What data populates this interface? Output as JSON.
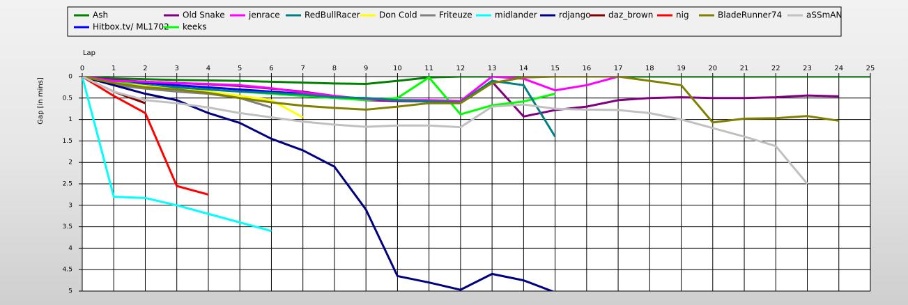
{
  "chart_data": {
    "type": "line",
    "x_label": "Lap",
    "y_label": "Gap [in mins]",
    "x": [
      0,
      1,
      2,
      3,
      4,
      5,
      6,
      7,
      8,
      9,
      10,
      11,
      12,
      13,
      14,
      15,
      16,
      17,
      18,
      19,
      20,
      21,
      22,
      23,
      24,
      25
    ],
    "xlim": [
      0,
      25
    ],
    "xticks": [
      0,
      1,
      2,
      3,
      4,
      5,
      6,
      7,
      8,
      9,
      10,
      11,
      12,
      13,
      14,
      15,
      16,
      17,
      18,
      19,
      20,
      21,
      22,
      23,
      24,
      25
    ],
    "ylim": [
      0,
      5
    ],
    "yticks": [
      0,
      0.5,
      1,
      1.5,
      2,
      2.5,
      3,
      3.5,
      4,
      4.5,
      5
    ],
    "y_inverted": true,
    "grid": true,
    "legend": "top",
    "series": [
      {
        "name": "Ash",
        "color": "#008000",
        "values": [
          0,
          0.04,
          0.06,
          0.08,
          0.09,
          0.1,
          0.12,
          0.14,
          0.16,
          0.17,
          0.1,
          0.02,
          0,
          0,
          0,
          0,
          0,
          0,
          0,
          0,
          0,
          0,
          0,
          0,
          0,
          0
        ]
      },
      {
        "name": "Hitbox.tv/ ML1702",
        "color": "#0000ff",
        "values": [
          0,
          0.1,
          0.15,
          0.2,
          0.25,
          0.3,
          0.35,
          0.4,
          0.45,
          0.55,
          0.55,
          0.55,
          0.6,
          null,
          null,
          null,
          null,
          null,
          null,
          null,
          null,
          null,
          null,
          null,
          null,
          null
        ]
      },
      {
        "name": "Old Snake",
        "color": "#800080",
        "values": [
          0,
          0.08,
          0.12,
          0.15,
          0.18,
          0.22,
          0.28,
          0.35,
          0.45,
          0.55,
          0.57,
          0.58,
          0.6,
          0.12,
          0.93,
          0.78,
          0.7,
          0.55,
          0.5,
          0.48,
          0.5,
          0.5,
          0.48,
          0.44,
          0.46,
          null
        ]
      },
      {
        "name": "keeks",
        "color": "#00ff00",
        "values": [
          0,
          0.12,
          0.2,
          0.25,
          0.3,
          0.35,
          0.4,
          0.45,
          0.5,
          0.55,
          0.5,
          0.02,
          0.88,
          0.67,
          0.58,
          0.4,
          null,
          null,
          null,
          null,
          null,
          null,
          null,
          null,
          null,
          null
        ]
      },
      {
        "name": "jenrace",
        "color": "#ff00ff",
        "values": [
          0,
          0.1,
          0.12,
          0.15,
          0.17,
          0.2,
          0.27,
          0.37,
          0.45,
          0.52,
          0.55,
          0.55,
          0.57,
          0,
          0.05,
          0.32,
          0.2,
          0,
          null,
          null,
          null,
          null,
          null,
          null,
          null,
          null
        ]
      },
      {
        "name": "RedBullRacer",
        "color": "#008080",
        "values": [
          0,
          0.15,
          0.2,
          0.25,
          0.3,
          0.35,
          0.38,
          0.42,
          0.48,
          0.5,
          0.55,
          0.58,
          0.6,
          0.1,
          0.2,
          1.4,
          null,
          null,
          null,
          null,
          null,
          null,
          null,
          null,
          null,
          null
        ]
      },
      {
        "name": "Don Cold",
        "color": "#ffff00",
        "values": [
          0,
          0.15,
          0.22,
          0.3,
          0.35,
          0.45,
          0.55,
          0.95,
          null,
          null,
          null,
          null,
          null,
          null,
          null,
          null,
          null,
          null,
          null,
          null,
          null,
          null,
          null,
          null,
          null,
          null
        ]
      },
      {
        "name": "Friteuze",
        "color": "#808080",
        "values": [
          0,
          0.2,
          0.28,
          0.35,
          0.4,
          0.5,
          0.72,
          null,
          null,
          null,
          null,
          null,
          null,
          null,
          null,
          null,
          null,
          null,
          null,
          null,
          null,
          null,
          null,
          null,
          null,
          null
        ]
      },
      {
        "name": "midlander",
        "color": "#00ffff",
        "values": [
          0,
          2.8,
          2.83,
          3,
          3.2,
          3.4,
          3.6,
          null,
          null,
          null,
          null,
          null,
          null,
          null,
          null,
          null,
          null,
          null,
          null,
          null,
          null,
          null,
          null,
          null,
          null,
          null
        ]
      },
      {
        "name": "rdjango",
        "color": "#000080",
        "values": [
          0,
          0.2,
          0.4,
          0.55,
          0.85,
          1.08,
          1.45,
          1.72,
          2.1,
          3.1,
          4.65,
          4.8,
          4.97,
          4.6,
          4.75,
          5.03,
          null,
          null,
          null,
          null,
          null,
          null,
          null,
          null,
          null,
          null
        ]
      },
      {
        "name": "daz_brown",
        "color": "#800000",
        "values": [
          0,
          0.35,
          0.62,
          null,
          null,
          null,
          null,
          null,
          null,
          null,
          null,
          null,
          null,
          null,
          null,
          null,
          null,
          null,
          null,
          null,
          null,
          null,
          null,
          null,
          null,
          null
        ]
      },
      {
        "name": "nig",
        "color": "#ff0000",
        "values": [
          0,
          0.45,
          0.85,
          2.55,
          2.75,
          null,
          null,
          null,
          null,
          null,
          null,
          null,
          null,
          null,
          null,
          null,
          null,
          null,
          null,
          null,
          null,
          null,
          null,
          null,
          null,
          null
        ]
      },
      {
        "name": "BladeRunner74",
        "color": "#808000",
        "values": [
          0,
          0.15,
          0.25,
          0.3,
          0.38,
          0.5,
          0.6,
          0.68,
          0.73,
          0.77,
          0.7,
          0.62,
          0.62,
          0.15,
          0.02,
          0,
          0,
          0,
          0.1,
          0.2,
          1.07,
          0.98,
          0.97,
          0.92,
          1.03,
          null
        ]
      },
      {
        "name": "aSSmAN",
        "color": "#c0c0c0",
        "values": [
          0,
          0.35,
          0.55,
          0.62,
          0.72,
          0.85,
          0.95,
          1.05,
          1.12,
          1.17,
          1.14,
          1.14,
          1.18,
          0.7,
          0.65,
          0.75,
          0.77,
          0.78,
          0.85,
          1,
          1.2,
          1.4,
          1.62,
          2.5,
          null,
          null
        ]
      }
    ]
  }
}
